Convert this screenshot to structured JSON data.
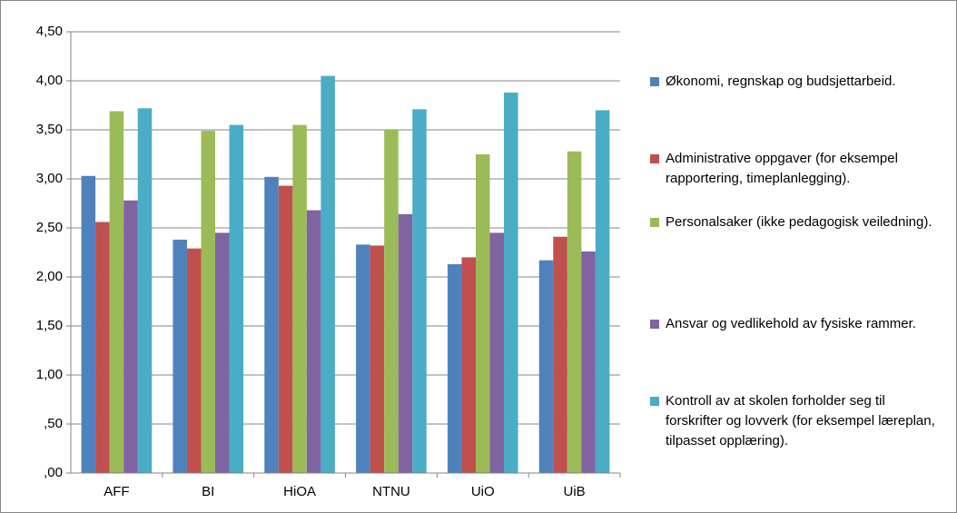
{
  "chart_data": {
    "type": "bar",
    "categories": [
      "AFF",
      "BI",
      "HiOA",
      "NTNU",
      "UiO",
      "UiB"
    ],
    "series": [
      {
        "name": "Økonomi, regnskap og budsjettarbeid.",
        "color": "#4f81bd",
        "values": [
          3.03,
          2.38,
          3.02,
          2.33,
          2.13,
          2.17
        ]
      },
      {
        "name": "Administrative oppgaver (for eksempel rapportering, timeplanlegging).",
        "color": "#c0504d",
        "values": [
          2.56,
          2.29,
          2.93,
          2.32,
          2.2,
          2.41
        ]
      },
      {
        "name": "Personalsaker (ikke pedagogisk veiledning).",
        "color": "#9bbb59",
        "values": [
          3.69,
          3.49,
          3.55,
          3.5,
          3.25,
          3.28
        ]
      },
      {
        "name": "Ansvar og vedlikehold av fysiske rammer.",
        "color": "#8064a2",
        "values": [
          2.78,
          2.45,
          2.68,
          2.64,
          2.45,
          2.26
        ]
      },
      {
        "name": "Kontroll av at skolen forholder seg til forskrifter og lovverk (for eksempel læreplan, tilpasset opplæring).",
        "color": "#4bacc6",
        "values": [
          3.72,
          3.55,
          4.05,
          3.71,
          3.88,
          3.7
        ]
      }
    ],
    "ylim": [
      0,
      4.5
    ],
    "yticks": [
      {
        "value": 0,
        "label": ",00"
      },
      {
        "value": 0.5,
        "label": ",50"
      },
      {
        "value": 1,
        "label": "1,00"
      },
      {
        "value": 1.5,
        "label": "1,50"
      },
      {
        "value": 2,
        "label": "2,00"
      },
      {
        "value": 2.5,
        "label": "2,50"
      },
      {
        "value": 3,
        "label": "3,00"
      },
      {
        "value": 3.5,
        "label": "3,50"
      },
      {
        "value": 4,
        "label": "4,00"
      },
      {
        "value": 4.5,
        "label": "4,50"
      }
    ],
    "grid": true,
    "legend": "right"
  }
}
